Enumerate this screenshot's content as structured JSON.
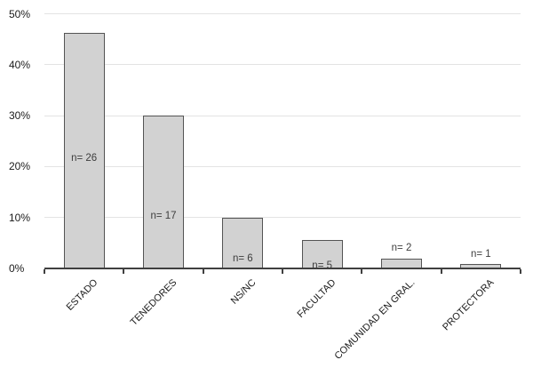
{
  "chart_data": {
    "type": "bar",
    "title": "",
    "xlabel": "",
    "ylabel": "",
    "categories": [
      "ESTADO",
      "TENEDORES",
      "NS/NC",
      "FACULTAD",
      "COMUNIDAD EN GRAL.",
      "PROTECTORA"
    ],
    "values": [
      46.2,
      30.0,
      9.9,
      5.5,
      1.9,
      0.9
    ],
    "counts": [
      26,
      17,
      6,
      5,
      2,
      1
    ],
    "bar_labels": [
      "n= 26",
      "n= 17",
      "n= 6",
      "n= 5",
      "n= 2",
      "n= 1"
    ],
    "label_placement": [
      "inside",
      "inside",
      "inside",
      "inside",
      "above",
      "above"
    ],
    "label_center_pct": [
      21.6,
      10.2,
      1.8,
      0.4,
      4.0,
      2.7
    ],
    "ylim": [
      0,
      50
    ],
    "ytick_step": 10,
    "ytick_labels": [
      "0%",
      "10%",
      "20%",
      "30%",
      "40%",
      "50%"
    ],
    "grid": true,
    "legend": false,
    "x_labels_rotation_deg": 45,
    "colors": {
      "bar_fill": "#d2d2d2",
      "bar_border": "#545454",
      "gridline": "#e3e3e3",
      "axis": "#404040",
      "tick_text": "#1a1a1a",
      "bar_label_text": "#3d3d3d",
      "background": "#ffffff"
    }
  }
}
